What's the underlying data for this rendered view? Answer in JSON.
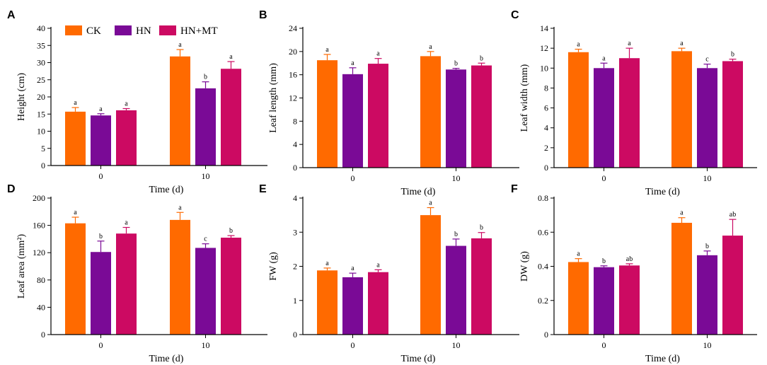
{
  "colors": {
    "CK": "#ff6a00",
    "HN": "#7a0a96",
    "HN+MT": "#cc0a62",
    "axis": "#000000"
  },
  "legend": [
    {
      "label": "CK",
      "color": "#ff6a00"
    },
    {
      "label": "HN",
      "color": "#7a0a96"
    },
    {
      "label": "HN+MT",
      "color": "#cc0a62"
    }
  ],
  "chart_data": [
    {
      "panel": "A",
      "type": "bar",
      "xlabel": "Time (d)",
      "ylabel": "Height (cm)",
      "categories": [
        "0",
        "10"
      ],
      "ylim": [
        0,
        40
      ],
      "yticks": [
        0,
        5,
        10,
        15,
        20,
        25,
        30,
        35,
        40
      ],
      "ytick_labels": [
        "0",
        "5",
        "10",
        "15",
        "20",
        "25",
        "30",
        "35",
        "40"
      ],
      "series": [
        {
          "name": "CK",
          "values": [
            15.7,
            31.8
          ],
          "errors": [
            1.2,
            2.0
          ],
          "letters": [
            "a",
            "a"
          ]
        },
        {
          "name": "HN",
          "values": [
            14.6,
            22.5
          ],
          "errors": [
            0.5,
            1.9
          ],
          "letters": [
            "a",
            "b"
          ]
        },
        {
          "name": "HN+MT",
          "values": [
            16.1,
            28.2
          ],
          "errors": [
            0.5,
            2.1
          ],
          "letters": [
            "a",
            "a"
          ]
        }
      ]
    },
    {
      "panel": "B",
      "type": "bar",
      "xlabel": "Time (d)",
      "ylabel": "Leaf length (mm)",
      "categories": [
        "0",
        "10"
      ],
      "ylim": [
        0,
        24
      ],
      "yticks": [
        0,
        4,
        8,
        12,
        16,
        20,
        24
      ],
      "ytick_labels": [
        "0",
        "4",
        "8",
        "12",
        "16",
        "20",
        "24"
      ],
      "series": [
        {
          "name": "CK",
          "values": [
            18.5,
            19.2
          ],
          "errors": [
            1.0,
            0.8
          ],
          "letters": [
            "a",
            "a"
          ]
        },
        {
          "name": "HN",
          "values": [
            16.1,
            16.9
          ],
          "errors": [
            1.1,
            0.2
          ],
          "letters": [
            "a",
            "b"
          ]
        },
        {
          "name": "HN+MT",
          "values": [
            17.9,
            17.6
          ],
          "errors": [
            0.9,
            0.4
          ],
          "letters": [
            "a",
            "b"
          ]
        }
      ]
    },
    {
      "panel": "C",
      "type": "bar",
      "xlabel": "Time (d)",
      "ylabel": "Leaf width (mm)",
      "categories": [
        "0",
        "10"
      ],
      "ylim": [
        0,
        14
      ],
      "yticks": [
        0,
        2,
        4,
        6,
        8,
        10,
        12,
        14
      ],
      "ytick_labels": [
        "0",
        "2",
        "4",
        "6",
        "8",
        "10",
        "12",
        "14"
      ],
      "series": [
        {
          "name": "CK",
          "values": [
            11.6,
            11.7
          ],
          "errors": [
            0.3,
            0.3
          ],
          "letters": [
            "a",
            "a"
          ]
        },
        {
          "name": "HN",
          "values": [
            10.0,
            10.0
          ],
          "errors": [
            0.5,
            0.4
          ],
          "letters": [
            "a",
            "c"
          ]
        },
        {
          "name": "HN+MT",
          "values": [
            11.0,
            10.7
          ],
          "errors": [
            1.0,
            0.2
          ],
          "letters": [
            "a",
            "b"
          ]
        }
      ]
    },
    {
      "panel": "D",
      "type": "bar",
      "xlabel": "Time (d)",
      "ylabel": "Leaf area (mm²)",
      "categories": [
        "0",
        "10"
      ],
      "ylim": [
        0,
        200
      ],
      "yticks": [
        0,
        40,
        80,
        120,
        160,
        200
      ],
      "ytick_labels": [
        "0",
        "40",
        "80",
        "120",
        "160",
        "200"
      ],
      "series": [
        {
          "name": "CK",
          "values": [
            163,
            168
          ],
          "errors": [
            9,
            11
          ],
          "letters": [
            "a",
            "a"
          ]
        },
        {
          "name": "HN",
          "values": [
            121,
            127
          ],
          "errors": [
            16,
            6
          ],
          "letters": [
            "b",
            "c"
          ]
        },
        {
          "name": "HN+MT",
          "values": [
            148,
            142
          ],
          "errors": [
            9,
            3
          ],
          "letters": [
            "a",
            "b"
          ]
        }
      ]
    },
    {
      "panel": "E",
      "type": "bar",
      "xlabel": "Time (d)",
      "ylabel": "FW (g)",
      "categories": [
        "0",
        "10"
      ],
      "ylim": [
        0,
        4
      ],
      "yticks": [
        0,
        1,
        2,
        3,
        4
      ],
      "ytick_labels": [
        "0",
        "1",
        "2",
        "3",
        "4"
      ],
      "series": [
        {
          "name": "CK",
          "values": [
            1.88,
            3.5
          ],
          "errors": [
            0.07,
            0.22
          ],
          "letters": [
            "a",
            "a"
          ]
        },
        {
          "name": "HN",
          "values": [
            1.68,
            2.6
          ],
          "errors": [
            0.12,
            0.2
          ],
          "letters": [
            "a",
            "b"
          ]
        },
        {
          "name": "HN+MT",
          "values": [
            1.83,
            2.82
          ],
          "errors": [
            0.07,
            0.17
          ],
          "letters": [
            "a",
            "b"
          ]
        }
      ]
    },
    {
      "panel": "F",
      "type": "bar",
      "xlabel": "Time (d)",
      "ylabel": "DW (g)",
      "categories": [
        "0",
        "10"
      ],
      "ylim": [
        0,
        0.8
      ],
      "yticks": [
        0,
        0.2,
        0.4,
        0.6,
        0.8
      ],
      "ytick_labels": [
        "0",
        "0.2",
        "0.4",
        "0.6",
        "0.8"
      ],
      "series": [
        {
          "name": "CK",
          "values": [
            0.425,
            0.655
          ],
          "errors": [
            0.02,
            0.03
          ],
          "letters": [
            "a",
            "a"
          ]
        },
        {
          "name": "HN",
          "values": [
            0.395,
            0.465
          ],
          "errors": [
            0.008,
            0.025
          ],
          "letters": [
            "b",
            "b"
          ]
        },
        {
          "name": "HN+MT",
          "values": [
            0.405,
            0.58
          ],
          "errors": [
            0.01,
            0.095
          ],
          "letters": [
            "ab",
            "ab"
          ]
        }
      ]
    }
  ]
}
